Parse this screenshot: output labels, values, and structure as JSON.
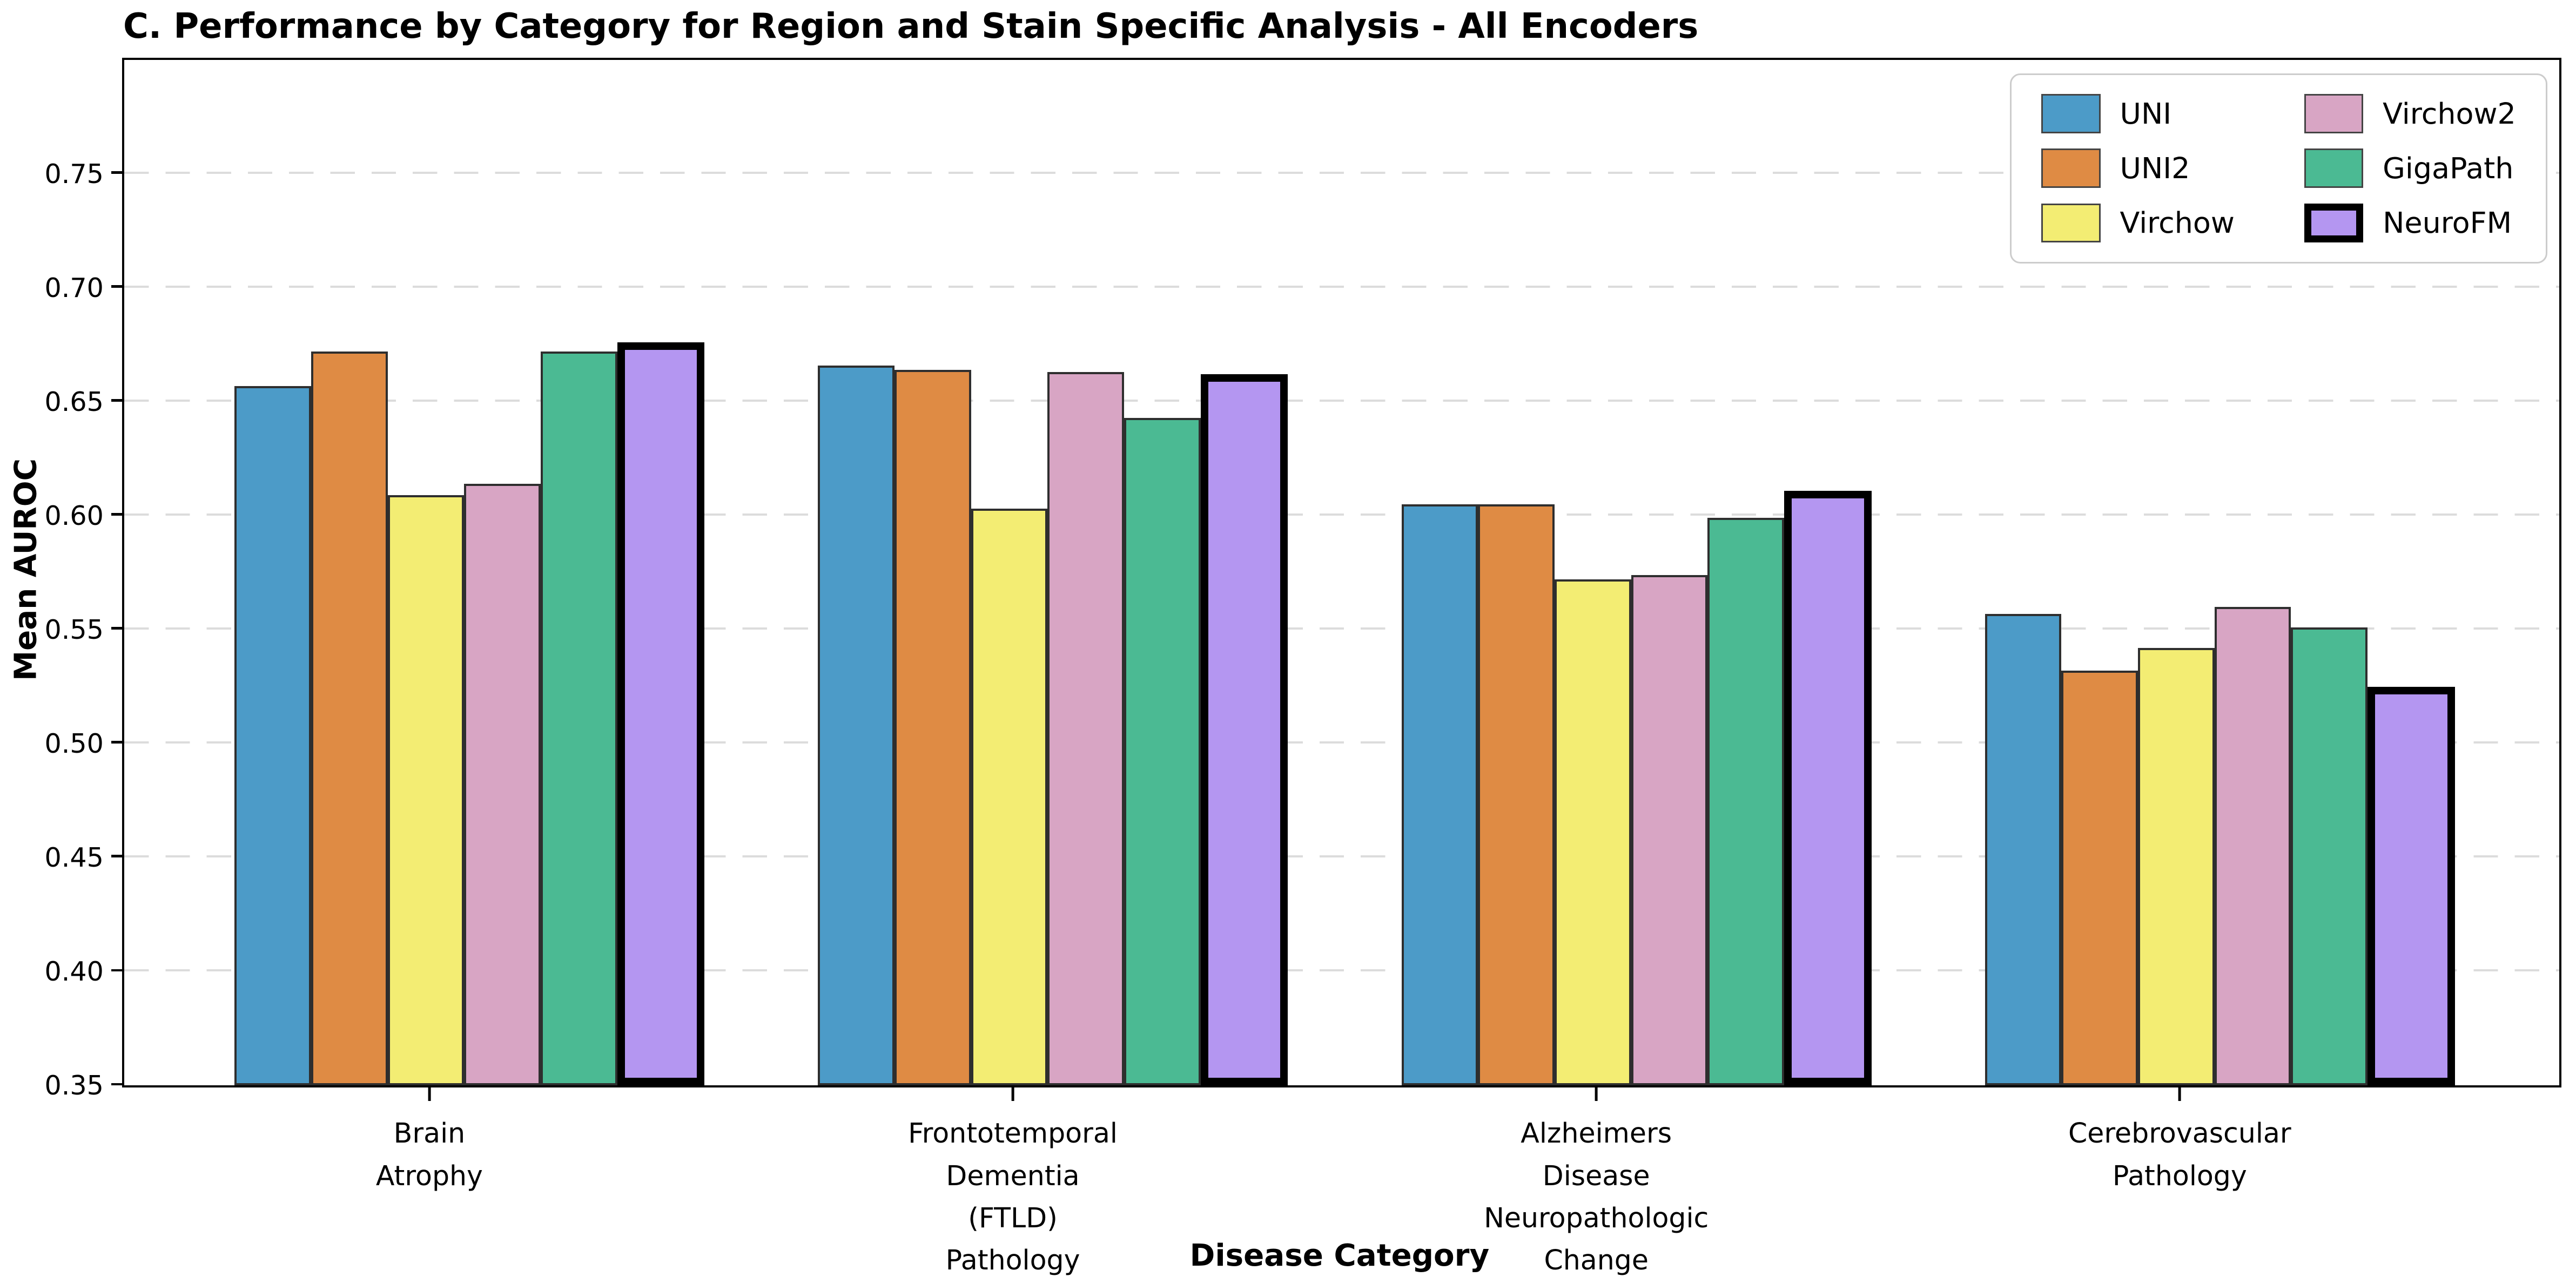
{
  "chart_data": {
    "type": "bar",
    "title": "C. Performance by Category for Region and Stain Specific Analysis - All Encoders",
    "xlabel": "Disease Category",
    "ylabel": "Mean AUROC",
    "ylim": [
      0.35,
      0.8
    ],
    "yticks": [
      0.35,
      0.4,
      0.45,
      0.5,
      0.55,
      0.6,
      0.65,
      0.7,
      0.75
    ],
    "grid": "horizontal-dashed",
    "legend_position": "upper-right",
    "legend_columns": 2,
    "categories": [
      {
        "lines": [
          "Brain",
          "Atrophy"
        ]
      },
      {
        "lines": [
          "Frontotemporal",
          "Dementia",
          "(FTLD)",
          "Pathology"
        ]
      },
      {
        "lines": [
          "Alzheimers",
          "Disease",
          "Neuropathologic",
          "Change"
        ]
      },
      {
        "lines": [
          "Cerebrovascular",
          "Pathology"
        ]
      }
    ],
    "series": [
      {
        "name": "UNI",
        "color": "#4C9BC8",
        "values": [
          0.657,
          0.666,
          0.605,
          0.557
        ]
      },
      {
        "name": "UNI2",
        "color": "#DF8B44",
        "values": [
          0.672,
          0.664,
          0.605,
          0.532
        ]
      },
      {
        "name": "Virchow",
        "color": "#F3ED73",
        "values": [
          0.609,
          0.603,
          0.572,
          0.542
        ]
      },
      {
        "name": "Virchow2",
        "color": "#D8A5C4",
        "values": [
          0.614,
          0.663,
          0.574,
          0.56
        ]
      },
      {
        "name": "GigaPath",
        "color": "#4BBA93",
        "values": [
          0.672,
          0.643,
          0.599,
          0.551
        ]
      },
      {
        "name": "NeuroFM",
        "color": "#B496F1",
        "values": [
          0.676,
          0.662,
          0.611,
          0.525
        ],
        "highlight": true
      }
    ],
    "styles": {
      "bar_edge_color": "#2e2e2e",
      "highlight_edge_color": "#000000",
      "grid_color": "#dcdcdc",
      "spine_color": "#000000",
      "legend_border_color": "#cccccc",
      "background": "#ffffff"
    },
    "layout": {
      "tick_centers_pct": [
        12.53,
        36.49,
        60.45,
        84.41
      ],
      "group_centers_pct": [
        14.18,
        38.14,
        62.1,
        86.06
      ],
      "group_width_pct": 19.3
    }
  }
}
